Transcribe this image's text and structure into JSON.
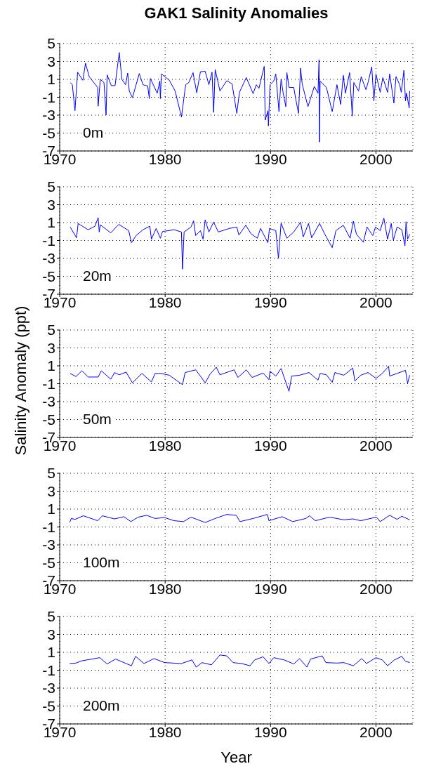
{
  "chart_data": [
    {
      "type": "line",
      "title": "GAK1 Salinity Anomalies",
      "annotations": [
        "0m"
      ],
      "xlim": [
        1970,
        2003.5
      ],
      "xticks": [
        1970,
        1980,
        1990,
        2000
      ],
      "ylim": [
        -7,
        5
      ],
      "yticks": [
        -7,
        -5,
        -3,
        -1,
        1,
        3,
        5
      ],
      "grid": true,
      "marker": "none",
      "line_style": "solid",
      "x": [
        1971.0,
        1971.2,
        1971.45,
        1971.7,
        1972.2,
        1972.45,
        1972.8,
        1973.6,
        1973.65,
        1973.85,
        1974.2,
        1974.4,
        1974.5,
        1974.9,
        1975.25,
        1975.65,
        1975.9,
        1976.25,
        1976.45,
        1976.6,
        1976.9,
        1977.55,
        1977.9,
        1978.35,
        1978.5,
        1978.6,
        1979.25,
        1979.5,
        1979.55,
        1979.65,
        1980.4,
        1980.95,
        1981.55,
        1981.95,
        1982.25,
        1982.65,
        1983.0,
        1983.35,
        1983.8,
        1984.15,
        1984.45,
        1984.6,
        1984.75,
        1985.2,
        1985.85,
        1986.35,
        1986.8,
        1987.05,
        1987.7,
        1988.35,
        1988.65,
        1988.9,
        1989.4,
        1989.5,
        1989.75,
        1989.8,
        1989.95,
        1990.3,
        1990.5,
        1990.8,
        1991.0,
        1991.2,
        1991.45,
        1991.55,
        1991.75,
        1992.2,
        1992.4,
        1992.65,
        1992.85,
        1993.0,
        1993.55,
        1994.15,
        1994.5,
        1994.6,
        1994.65,
        1994.7,
        1995.3,
        1995.85,
        1996.3,
        1996.65,
        1996.9,
        1997.1,
        1997.5,
        1997.75,
        1997.9,
        1998.35,
        1998.6,
        1999.05,
        1999.25,
        1999.6,
        1999.8,
        2000.0,
        2000.4,
        2000.65,
        2001.1,
        2001.3,
        2001.7,
        2001.9,
        2002.25,
        2002.4,
        2002.65,
        2002.8,
        2002.9,
        2003.15,
        2003.2
      ],
      "series": [
        {
          "color": "#0000ff",
          "values": [
            0.65,
            0.4,
            -2.5,
            1.8,
            0.9,
            2.8,
            1.3,
            0.1,
            -2.0,
            1.0,
            0.65,
            -3.0,
            1.5,
            0.3,
            0.3,
            4.0,
            1.0,
            0.4,
            1.7,
            -0.3,
            -1.05,
            1.65,
            0.4,
            0.25,
            -1.15,
            1.1,
            -0.55,
            0.8,
            -1.15,
            1.6,
            0.9,
            -0.3,
            -3.2,
            0.4,
            0.65,
            1.75,
            -0.5,
            1.85,
            1.9,
            0.4,
            1.8,
            -2.7,
            2.1,
            -0.3,
            0.85,
            0.5,
            -2.8,
            -0.45,
            1.2,
            -0.6,
            0.4,
            0.0,
            2.45,
            -3.55,
            -2.5,
            -4.2,
            0.4,
            0.8,
            1.6,
            -2.6,
            1.05,
            -0.55,
            -2.05,
            1.75,
            0.1,
            0.1,
            -1.25,
            -2.8,
            2.25,
            0.5,
            -2.05,
            0.2,
            -0.55,
            3.2,
            -6.0,
            0.8,
            0.1,
            -2.6,
            0.4,
            -1.8,
            1.45,
            -0.55,
            1.75,
            -3.1,
            0.65,
            -0.3,
            1.3,
            -0.15,
            0.65,
            2.4,
            -1.4,
            1.6,
            -0.45,
            1.2,
            -0.45,
            1.6,
            -1.65,
            1.3,
            0.4,
            -0.45,
            2.0,
            -1.4,
            -0.55,
            -2.2,
            -0.3
          ]
        }
      ]
    },
    {
      "type": "line",
      "annotations": [
        "20m"
      ],
      "xlim": [
        1970,
        2003.5
      ],
      "xticks": [
        1970,
        1980,
        1990,
        2000
      ],
      "ylim": [
        -7,
        5
      ],
      "yticks": [
        -7,
        -5,
        -3,
        -1,
        1,
        3,
        5
      ],
      "grid": true,
      "marker": "none",
      "line_style": "solid",
      "x": [
        1971.0,
        1971.6,
        1971.75,
        1972.7,
        1973.35,
        1973.65,
        1973.75,
        1973.85,
        1974.85,
        1975.6,
        1976.55,
        1976.8,
        1977.25,
        1977.9,
        1978.55,
        1978.7,
        1979.15,
        1979.55,
        1979.75,
        1980.85,
        1981.55,
        1981.65,
        1981.8,
        1982.45,
        1982.7,
        1982.9,
        1983.35,
        1983.6,
        1983.8,
        1984.15,
        1984.6,
        1985.05,
        1986.1,
        1986.8,
        1987.0,
        1987.65,
        1988.15,
        1988.75,
        1989.05,
        1989.75,
        1989.9,
        1990.5,
        1990.75,
        1991.0,
        1991.55,
        1992.2,
        1992.85,
        1993.1,
        1993.6,
        1993.9,
        1994.65,
        1995.15,
        1995.85,
        1996.2,
        1996.9,
        1997.55,
        1997.85,
        1998.15,
        1998.8,
        1999.15,
        1999.7,
        1999.95,
        2000.4,
        2000.75,
        2001.1,
        2001.45,
        2001.65,
        2002.0,
        2002.45,
        2002.75,
        2002.85,
        2003.0,
        2003.2
      ],
      "series": [
        {
          "color": "#0000ff",
          "values": [
            0.5,
            -0.7,
            0.9,
            0.2,
            0.6,
            1.55,
            -0.05,
            0.75,
            -0.15,
            0.8,
            0.1,
            -1.25,
            -0.45,
            0.2,
            0.6,
            -0.85,
            0.35,
            -0.75,
            0.0,
            0.2,
            -0.05,
            -4.2,
            -0.05,
            0.5,
            1.2,
            -0.45,
            0.1,
            -0.85,
            1.3,
            -0.05,
            1.05,
            -0.05,
            0.35,
            0.5,
            -0.4,
            0.7,
            -0.25,
            -0.75,
            0.35,
            -1.25,
            0.35,
            0.1,
            -3.0,
            0.95,
            -0.75,
            -0.05,
            1.05,
            -0.6,
            0.9,
            -0.7,
            0.9,
            -0.3,
            -1.8,
            0.1,
            0.7,
            -0.75,
            1.15,
            -0.3,
            -1.2,
            0.5,
            -0.45,
            0.5,
            0.1,
            1.5,
            -0.85,
            0.9,
            -0.95,
            0.5,
            0.2,
            -1.6,
            1.1,
            -0.85,
            -0.3
          ]
        }
      ]
    },
    {
      "type": "line",
      "ylabel": "Salinity Anomaly (ppt)",
      "annotations": [
        "50m"
      ],
      "xlim": [
        1970,
        2003.5
      ],
      "xticks": [
        1970,
        1980,
        1990,
        2000
      ],
      "ylim": [
        -7,
        5
      ],
      "yticks": [
        -7,
        -5,
        -3,
        -1,
        1,
        3,
        5
      ],
      "grid": true,
      "marker": "none",
      "line_style": "solid",
      "x": [
        1971.0,
        1971.55,
        1972.1,
        1972.7,
        1973.65,
        1973.95,
        1974.85,
        1975.2,
        1975.65,
        1976.3,
        1976.9,
        1977.8,
        1978.7,
        1979.05,
        1979.6,
        1980.4,
        1980.8,
        1981.65,
        1981.9,
        1982.9,
        1983.35,
        1983.8,
        1984.25,
        1984.85,
        1985.2,
        1986.55,
        1986.9,
        1987.7,
        1988.25,
        1989.3,
        1989.85,
        1989.95,
        1990.5,
        1991.0,
        1991.75,
        1992.0,
        1992.75,
        1993.65,
        1994.5,
        1994.7,
        1995.3,
        1995.85,
        1996.1,
        1996.95,
        1997.8,
        1998.0,
        1998.55,
        1999.25,
        2000.0,
        2000.6,
        2001.2,
        2001.3,
        2002.0,
        2002.8,
        2003.0,
        2003.2
      ],
      "series": [
        {
          "color": "#0000ff",
          "values": [
            0.15,
            -0.2,
            0.45,
            -0.25,
            -0.25,
            0.45,
            -0.5,
            0.25,
            0.0,
            0.3,
            -0.9,
            0.15,
            -0.8,
            0.15,
            0.15,
            -0.05,
            -0.4,
            -1.1,
            0.25,
            0.55,
            -0.15,
            -0.9,
            0.05,
            0.85,
            0.0,
            0.55,
            -0.3,
            0.55,
            -0.3,
            0.2,
            -0.55,
            0.4,
            -0.15,
            0.7,
            -1.85,
            -0.15,
            -0.05,
            0.25,
            -0.6,
            0.15,
            0.0,
            -0.85,
            0.25,
            -0.05,
            0.75,
            -0.7,
            -0.05,
            0.25,
            -0.4,
            0.15,
            0.95,
            -0.15,
            0.15,
            0.5,
            -0.95,
            -0.05
          ]
        }
      ]
    },
    {
      "type": "line",
      "annotations": [
        "100m"
      ],
      "xlim": [
        1970,
        2003.5
      ],
      "xticks": [
        1970,
        1980,
        1990,
        2000
      ],
      "ylim": [
        -7,
        5
      ],
      "yticks": [
        -7,
        -5,
        -3,
        -1,
        1,
        3,
        5
      ],
      "grid": true,
      "marker": "none",
      "line_style": "solid",
      "x": [
        1970.95,
        1971.1,
        1971.45,
        1972.25,
        1973.6,
        1974.05,
        1975.2,
        1976.1,
        1976.75,
        1977.45,
        1978.25,
        1979.05,
        1979.95,
        1980.85,
        1981.75,
        1982.45,
        1982.9,
        1983.8,
        1984.75,
        1985.85,
        1986.75,
        1987.1,
        1988.35,
        1989.7,
        1989.85,
        1991.1,
        1992.1,
        1993.35,
        1993.7,
        1994.25,
        1995.6,
        1996.95,
        1997.8,
        1998.55,
        2000.05,
        2000.4,
        2001.3,
        2002.0,
        2002.45,
        2003.2
      ],
      "series": [
        {
          "color": "#0000ff",
          "values": [
            -0.5,
            -0.05,
            -0.15,
            0.25,
            -0.3,
            0.25,
            -0.1,
            0.15,
            -0.4,
            0.1,
            0.3,
            -0.05,
            0.05,
            -0.3,
            -0.4,
            0.1,
            -0.1,
            -0.5,
            -0.05,
            0.4,
            0.3,
            -0.4,
            -0.05,
            0.4,
            -0.3,
            0.15,
            -0.4,
            -0.05,
            0.25,
            -0.3,
            0.1,
            -0.2,
            -0.1,
            -0.3,
            0.1,
            -0.4,
            0.3,
            -0.15,
            0.2,
            -0.2
          ]
        }
      ]
    },
    {
      "type": "line",
      "xlabel": "Year",
      "annotations": [
        "200m"
      ],
      "xlim": [
        1970,
        2003.5
      ],
      "xticks": [
        1970,
        1980,
        1990,
        2000
      ],
      "ylim": [
        -7,
        5
      ],
      "yticks": [
        -7,
        -5,
        -3,
        -1,
        1,
        3,
        5
      ],
      "grid": true,
      "marker": "none",
      "line_style": "solid",
      "x": [
        1970.95,
        1971.55,
        1972.1,
        1973.8,
        1974.5,
        1975.3,
        1976.3,
        1976.8,
        1977.2,
        1978.0,
        1978.95,
        1979.95,
        1981.55,
        1982.55,
        1982.95,
        1983.5,
        1984.4,
        1985.2,
        1985.85,
        1986.45,
        1987.25,
        1988.05,
        1988.5,
        1989.3,
        1989.85,
        1990.3,
        1991.3,
        1992.2,
        1992.75,
        1993.45,
        1993.8,
        1994.9,
        1995.25,
        1996.3,
        1996.95,
        1997.85,
        1998.65,
        1999.1,
        2000.0,
        2000.6,
        2001.1,
        2001.75,
        2002.45,
        2002.8,
        2003.2
      ],
      "series": [
        {
          "color": "#0000ff",
          "values": [
            -0.25,
            -0.2,
            0.05,
            0.4,
            -0.3,
            0.25,
            -0.25,
            -0.5,
            0.55,
            -0.25,
            0.3,
            -0.15,
            -0.25,
            0.15,
            -0.65,
            -0.15,
            -0.4,
            0.7,
            0.6,
            -0.15,
            -0.25,
            -0.5,
            0.15,
            0.5,
            -0.25,
            0.4,
            0.15,
            -0.3,
            0.3,
            -0.65,
            0.25,
            0.6,
            -0.15,
            -0.2,
            -0.15,
            -0.5,
            0.3,
            -0.25,
            0.4,
            0.15,
            -0.5,
            0.15,
            0.55,
            0.0,
            -0.15
          ]
        }
      ]
    }
  ]
}
